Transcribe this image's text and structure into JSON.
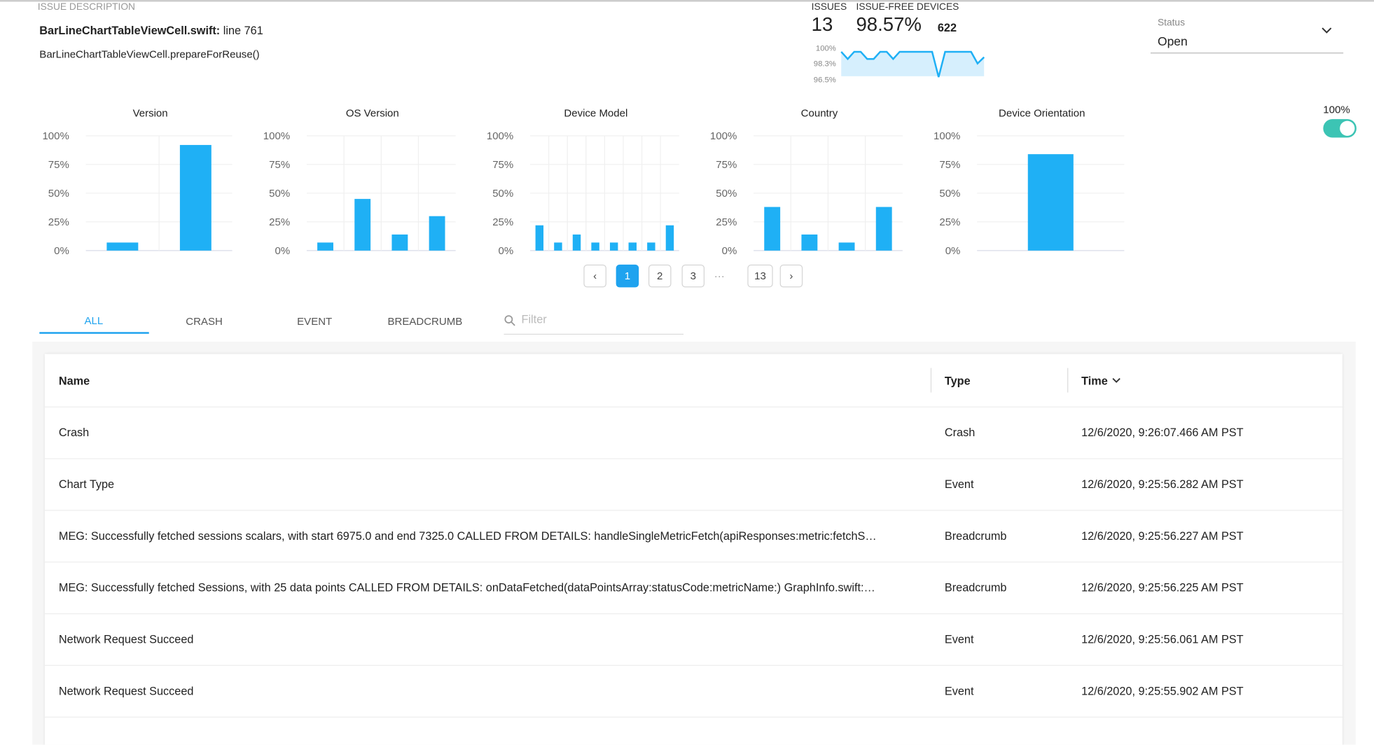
{
  "header": {
    "label": "ISSUE DESCRIPTION",
    "file": "BarLineChartTableViewCell.swift:",
    "line": "line 761",
    "method": "BarLineChartTableViewCell.prepareForReuse()"
  },
  "stats": {
    "issues_label": "ISSUES",
    "issues": "13",
    "devices_label": "ISSUE-FREE DEVICES",
    "devices_pct": "98.57%",
    "devices_count": "622"
  },
  "status": {
    "label": "Status",
    "value": "Open"
  },
  "toggle": {
    "label": "100%"
  },
  "chart_data": [
    {
      "type": "bar",
      "title": "Version",
      "categories": [
        null,
        null
      ],
      "values": [
        7,
        92
      ],
      "color": "#1fb0f5",
      "ylim": [
        0,
        100
      ],
      "yticks": [
        {
          "value": 0,
          "label": "0%"
        },
        {
          "value": 25,
          "label": "25%"
        },
        {
          "value": 50,
          "label": "50%"
        },
        {
          "value": 75,
          "label": "75%"
        },
        {
          "value": 100,
          "label": "100%"
        }
      ],
      "grid": true
    },
    {
      "type": "bar",
      "title": "OS Version",
      "categories": [
        null,
        null,
        null,
        null
      ],
      "values": [
        7,
        45,
        14,
        30
      ],
      "color": "#1fb0f5",
      "ylim": [
        0,
        100
      ],
      "yticks": [
        {
          "value": 0,
          "label": "0%"
        },
        {
          "value": 25,
          "label": "25%"
        },
        {
          "value": 50,
          "label": "50%"
        },
        {
          "value": 75,
          "label": "75%"
        },
        {
          "value": 100,
          "label": "100%"
        }
      ],
      "grid": true
    },
    {
      "type": "bar",
      "title": "Device Model",
      "categories": [
        null,
        null,
        null,
        null,
        null,
        null,
        null,
        null
      ],
      "values": [
        22,
        7,
        14,
        7,
        7,
        7,
        7,
        22
      ],
      "color": "#1fb0f5",
      "ylim": [
        0,
        100
      ],
      "yticks": [
        {
          "value": 0,
          "label": "0%"
        },
        {
          "value": 25,
          "label": "25%"
        },
        {
          "value": 50,
          "label": "50%"
        },
        {
          "value": 75,
          "label": "75%"
        },
        {
          "value": 100,
          "label": "100%"
        }
      ],
      "grid": true
    },
    {
      "type": "bar",
      "title": "Country",
      "categories": [
        null,
        null,
        null,
        null
      ],
      "values": [
        38,
        14,
        7,
        38
      ],
      "color": "#1fb0f5",
      "ylim": [
        0,
        100
      ],
      "yticks": [
        {
          "value": 0,
          "label": "0%"
        },
        {
          "value": 25,
          "label": "25%"
        },
        {
          "value": 50,
          "label": "50%"
        },
        {
          "value": 75,
          "label": "75%"
        },
        {
          "value": 100,
          "label": "100%"
        }
      ],
      "grid": true
    },
    {
      "type": "bar",
      "title": "Device Orientation",
      "categories": [
        null
      ],
      "values": [
        84
      ],
      "color": "#1fb0f5",
      "ylim": [
        0,
        100
      ],
      "yticks": [
        {
          "value": 0,
          "label": "0%"
        },
        {
          "value": 25,
          "label": "25%"
        },
        {
          "value": 50,
          "label": "50%"
        },
        {
          "value": 75,
          "label": "75%"
        },
        {
          "value": 100,
          "label": "100%"
        }
      ],
      "grid": true
    },
    {
      "type": "line",
      "categories": [
        null,
        null,
        null,
        null,
        null,
        null,
        null,
        null,
        null,
        null,
        null,
        null,
        null,
        null,
        null,
        null,
        null,
        null,
        null,
        null,
        null,
        null,
        null
      ],
      "values": [
        99.6,
        98.8,
        99.6,
        99.6,
        98.8,
        98.8,
        99.6,
        99.6,
        98.8,
        99.6,
        99.6,
        99.6,
        99.6,
        99.6,
        99.6,
        96.8,
        99.6,
        99.6,
        99.6,
        99.6,
        99.6,
        98.3,
        99.0
      ],
      "color": "#1fb0f5",
      "ylim": [
        96.5,
        100
      ],
      "yticks": [
        {
          "value": 100,
          "label": "100%"
        },
        {
          "value": 98.3,
          "label": "98.3%"
        },
        {
          "value": 96.5,
          "label": "96.5%"
        }
      ]
    }
  ],
  "pagination": [
    "‹",
    "1",
    "2",
    "3",
    "···",
    "13",
    "›"
  ],
  "tabs": [
    "ALL",
    "CRASH",
    "EVENT",
    "BREADCRUMB"
  ],
  "filter": "Filter",
  "table": {
    "columns": [
      "Name",
      "Type",
      "Time"
    ],
    "rows": [
      [
        "Crash",
        "Crash",
        "12/6/2020, 9:26:07.466 AM PST"
      ],
      [
        "Chart Type",
        "Event",
        "12/6/2020, 9:25:56.282 AM PST"
      ],
      [
        "MEG: Successfully fetched sessions scalars, with start 6975.0 and end 7325.0 CALLED FROM DETAILS: handleSingleMetricFetch(apiResponses:metric:fetchS…",
        "Breadcrumb",
        "12/6/2020, 9:25:56.227 AM PST"
      ],
      [
        "MEG: Successfully fetched Sessions, with 25 data points CALLED FROM DETAILS: onDataFetched(dataPointsArray:statusCode:metricName:) GraphInfo.swift:…",
        "Breadcrumb",
        "12/6/2020, 9:25:56.225 AM PST"
      ],
      [
        "Network Request Succeed",
        "Event",
        "12/6/2020, 9:25:56.061 AM PST"
      ],
      [
        "Network Request Succeed",
        "Event",
        "12/6/2020, 9:25:55.902 AM PST"
      ]
    ]
  }
}
